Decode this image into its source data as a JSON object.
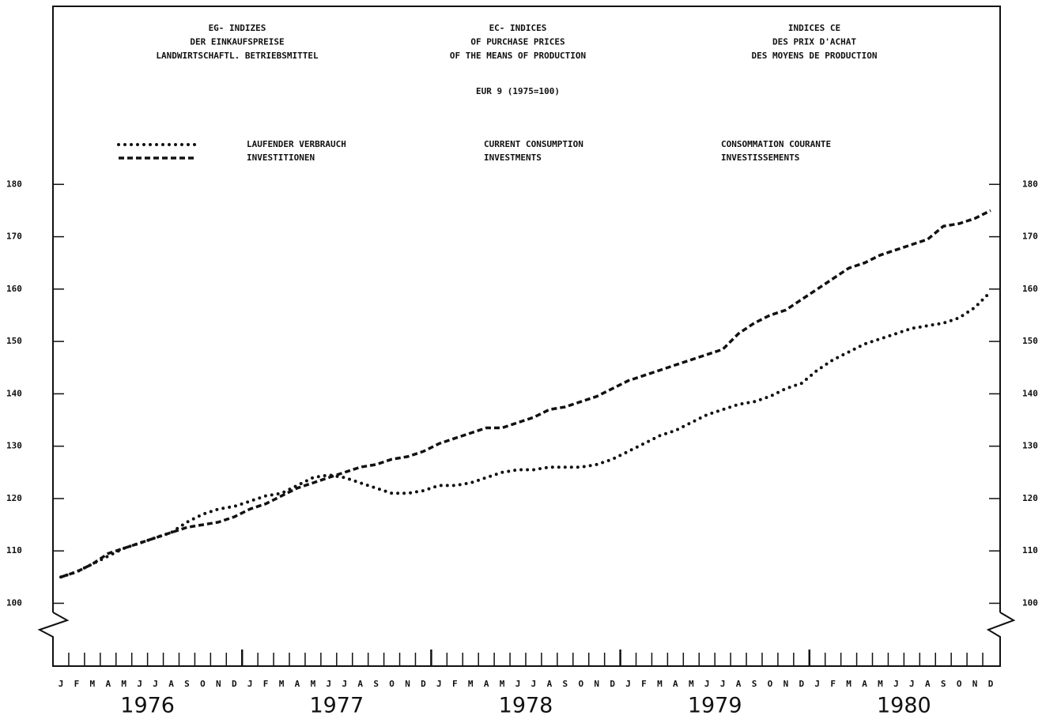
{
  "chart_data": {
    "type": "line",
    "titles": [
      [
        "EG- INDIZES",
        "DER EINKAUFSPREISE",
        "LANDWIRTSCHAFTL. BETRIEBSMITTEL"
      ],
      [
        "EC- INDICES",
        "OF PURCHASE PRICES",
        "OF THE MEANS OF PRODUCTION"
      ],
      [
        "INDICES CE",
        "DES PRIX D'ACHAT",
        "DES MOYENS DE PRODUCTION"
      ]
    ],
    "subtitle": "EUR 9 (1975=100)",
    "categories": [
      "J",
      "F",
      "M",
      "A",
      "M",
      "J",
      "J",
      "A",
      "S",
      "O",
      "N",
      "D",
      "J",
      "F",
      "M",
      "A",
      "M",
      "J",
      "J",
      "A",
      "S",
      "O",
      "N",
      "D",
      "J",
      "F",
      "M",
      "A",
      "M",
      "J",
      "J",
      "A",
      "S",
      "O",
      "N",
      "D",
      "J",
      "F",
      "M",
      "A",
      "M",
      "J",
      "J",
      "A",
      "S",
      "O",
      "N",
      "D",
      "J",
      "F",
      "M",
      "A",
      "M",
      "J",
      "J",
      "A",
      "S",
      "O",
      "N",
      "D"
    ],
    "years": [
      "1976",
      "1977",
      "1978",
      "1979",
      "1980"
    ],
    "series": [
      {
        "name": "LAUFENDER VERBRAUCH",
        "name_en": "CURRENT CONSUMPTION",
        "name_fr": "CONSOMMATION COURANTE",
        "color": "#111111",
        "style": "dotted",
        "values": [
          105,
          106,
          107.5,
          109,
          110.5,
          111.5,
          112.5,
          113.5,
          115.5,
          117,
          118,
          118.5,
          119.5,
          120.5,
          121,
          122.5,
          124,
          124.5,
          124,
          123,
          122,
          121,
          121,
          121.5,
          122.5,
          122.5,
          123,
          124,
          125,
          125.5,
          125.5,
          126,
          126,
          126,
          126.5,
          127.5,
          129,
          130.5,
          132,
          133,
          134.5,
          136,
          137,
          138,
          138.5,
          139.5,
          141,
          142,
          144.5,
          146.5,
          148,
          149.5,
          150.5,
          151.5,
          152.5,
          153,
          153.5,
          154.5,
          156.5,
          159.5
        ]
      },
      {
        "name": "INVESTITIONEN",
        "name_en": "INVESTMENTS",
        "name_fr": "INVESTISSEMENTS",
        "color": "#111111",
        "style": "dashed",
        "values": [
          105,
          106,
          107.5,
          109.5,
          110.5,
          111.5,
          112.5,
          113.5,
          114.5,
          115,
          115.5,
          116.5,
          118,
          119,
          120.5,
          122,
          123,
          124,
          125,
          126,
          126.5,
          127.5,
          128,
          129,
          130.5,
          131.5,
          132.5,
          133.5,
          133.5,
          134.5,
          135.5,
          137,
          137.5,
          138.5,
          139.5,
          141,
          142.5,
          143.5,
          144.5,
          145.5,
          146.5,
          147.5,
          148.5,
          151.5,
          153.5,
          155,
          156,
          158,
          160,
          162,
          164,
          165,
          166.5,
          167.5,
          168.5,
          169.5,
          172,
          172.5,
          173.5,
          175
        ]
      }
    ],
    "ylim": [
      88,
      214
    ],
    "yticks": [
      100,
      110,
      120,
      130,
      140,
      150,
      160,
      170,
      180
    ]
  }
}
